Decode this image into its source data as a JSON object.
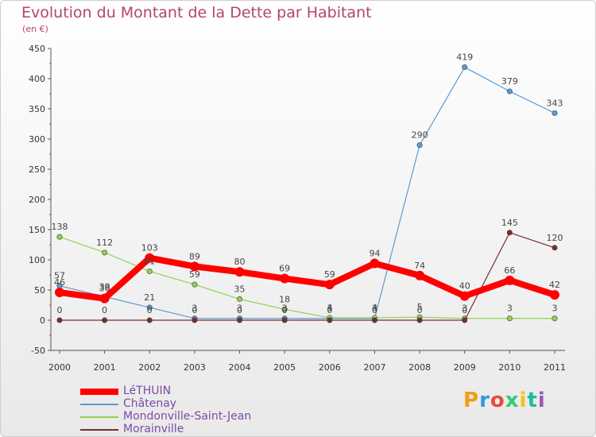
{
  "title": "Evolution du Montant de la Dette par Habitant",
  "subtitle": "(en €)",
  "logo": "Proxiti",
  "chart_data": {
    "type": "line",
    "title": "Evolution du Montant de la Dette par Habitant",
    "ylabel": "(en €)",
    "ylim": [
      -50,
      450
    ],
    "yticks": [
      -50,
      0,
      50,
      100,
      150,
      200,
      250,
      300,
      350,
      400,
      450
    ],
    "grid": false,
    "legend_position": "bottom-left",
    "x": [
      "2000",
      "2001",
      "2002",
      "2003",
      "2004",
      "2005",
      "2006",
      "2007",
      "2008",
      "2009",
      "2010",
      "2011"
    ],
    "series": [
      {
        "name": "LéTHUIN",
        "color": "#ff0000",
        "values": [
          46,
          36,
          103,
          89,
          80,
          69,
          59,
          94,
          74,
          40,
          66,
          42
        ]
      },
      {
        "name": "Châtenay",
        "color": "#5b9bd5",
        "values": [
          57,
          39,
          21,
          3,
          3,
          3,
          3,
          3,
          290,
          419,
          379,
          343
        ]
      },
      {
        "name": "Mondonville-Saint-Jean",
        "color": "#92d050",
        "values": [
          138,
          112,
          81,
          59,
          35,
          18,
          4,
          4,
          5,
          3,
          3,
          3
        ]
      },
      {
        "name": "Morainville",
        "color": "#7b2c2c",
        "values": [
          0,
          0,
          0,
          0,
          0,
          0,
          0,
          0,
          0,
          0,
          145,
          120
        ]
      }
    ]
  }
}
